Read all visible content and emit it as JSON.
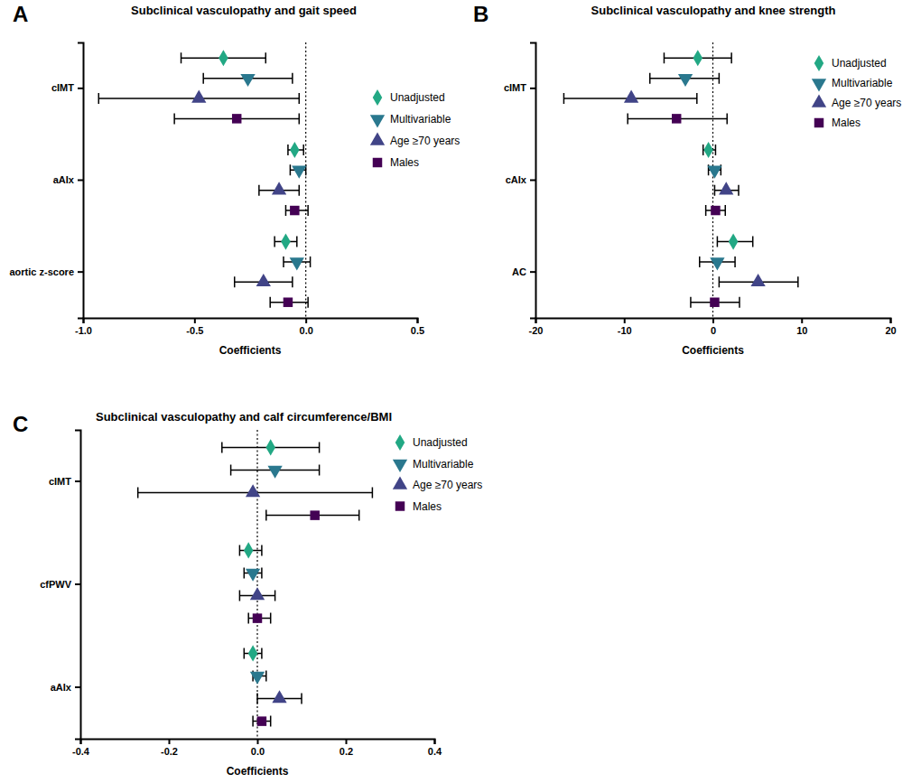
{
  "chart_data": [
    {
      "type": "forest",
      "panel": "A",
      "title": "Subclinical vasculopathy and gait speed",
      "x_label": "Coefficients",
      "categories": [
        "cIMT",
        "aAIx",
        "aortic z-score"
      ],
      "series": [
        {
          "name": "Unadjusted",
          "color": "#22a884",
          "marker": "diamond",
          "values": [
            -0.37,
            -0.05,
            -0.09
          ],
          "ci_low": [
            -0.56,
            -0.08,
            -0.14
          ],
          "ci_high": [
            -0.18,
            -0.01,
            -0.04
          ]
        },
        {
          "name": "Multivariable",
          "color": "#2a788e",
          "marker": "triangle-down",
          "values": [
            -0.26,
            -0.03,
            -0.04
          ],
          "ci_low": [
            -0.46,
            -0.07,
            -0.1
          ],
          "ci_high": [
            -0.06,
            0,
            0.02
          ]
        },
        {
          "name": "Age ≥70 years",
          "color": "#414487",
          "marker": "triangle-up",
          "values": [
            -0.48,
            -0.12,
            -0.19
          ],
          "ci_low": [
            -0.93,
            -0.21,
            -0.32
          ],
          "ci_high": [
            -0.03,
            -0.03,
            -0.06
          ]
        },
        {
          "name": "Males",
          "color": "#440154",
          "marker": "square",
          "values": [
            -0.31,
            -0.05,
            -0.08
          ],
          "ci_low": [
            -0.59,
            -0.09,
            -0.16
          ],
          "ci_high": [
            -0.03,
            0.01,
            0.01
          ]
        }
      ],
      "xlim": [
        -1,
        0.5
      ],
      "xticks": [
        {
          "value": -1,
          "label": "-1.0"
        },
        -0.5,
        {
          "value": 0,
          "label": "0.0"
        },
        0.5
      ],
      "reference_line": 0,
      "legend": "upper right"
    },
    {
      "type": "forest",
      "panel": "B",
      "title": "Subclinical vasculopathy and knee strength",
      "x_label": "Coefficients",
      "categories": [
        "cIMT",
        "cAIx",
        "AC"
      ],
      "series": [
        {
          "name": "Unadjusted",
          "color": "#22a884",
          "marker": "diamond",
          "values": [
            -1.7,
            -0.5,
            2.3
          ],
          "ci_low": [
            -5.5,
            -1.1,
            0.5
          ],
          "ci_high": [
            2.1,
            0.3,
            4.5
          ]
        },
        {
          "name": "Multivariable",
          "color": "#2a788e",
          "marker": "triangle-down",
          "values": [
            -3.1,
            0.2,
            0.5
          ],
          "ci_low": [
            -7.1,
            -0.5,
            -1.5
          ],
          "ci_high": [
            0.7,
            0.9,
            2.5
          ]
        },
        {
          "name": "Age ≥70 years",
          "color": "#414487",
          "marker": "triangle-up",
          "values": [
            -9.2,
            1.5,
            5.1
          ],
          "ci_low": [
            -16.8,
            0.2,
            0.7
          ],
          "ci_high": [
            -1.8,
            2.9,
            9.6
          ]
        },
        {
          "name": "Males",
          "color": "#440154",
          "marker": "square",
          "values": [
            -4.1,
            0.3,
            0.2
          ],
          "ci_low": [
            -9.6,
            -0.8,
            -2.5
          ],
          "ci_high": [
            1.6,
            1.4,
            3.0
          ]
        }
      ],
      "xlim": [
        -20,
        20
      ],
      "xticks": [
        -20,
        -10,
        0,
        10,
        20
      ],
      "reference_line": 0,
      "legend": "upper right"
    },
    {
      "type": "forest",
      "panel": "C",
      "title": "Subclinical vasculopathy and calf circumference/BMI",
      "x_label": "Coefficients",
      "categories": [
        "cIMT",
        "cfPWV",
        "aAIx"
      ],
      "series": [
        {
          "name": "Unadjusted",
          "color": "#22a884",
          "marker": "diamond",
          "values": [
            0.03,
            -0.02,
            -0.01
          ],
          "ci_low": [
            -0.08,
            -0.04,
            -0.03
          ],
          "ci_high": [
            0.14,
            0.01,
            0.01
          ]
        },
        {
          "name": "Multivariable",
          "color": "#2a788e",
          "marker": "triangle-down",
          "values": [
            0.04,
            -0.01,
            0
          ],
          "ci_low": [
            -0.06,
            -0.03,
            -0.01
          ],
          "ci_high": [
            0.14,
            0.01,
            0.02
          ]
        },
        {
          "name": "Age ≥70 years",
          "color": "#414487",
          "marker": "triangle-up",
          "values": [
            -0.01,
            0,
            0.05
          ],
          "ci_low": [
            -0.27,
            -0.04,
            0
          ],
          "ci_high": [
            0.26,
            0.04,
            0.1
          ]
        },
        {
          "name": "Males",
          "color": "#440154",
          "marker": "square",
          "values": [
            0.13,
            0,
            0.01
          ],
          "ci_low": [
            0.02,
            -0.02,
            -0.01
          ],
          "ci_high": [
            0.23,
            0.03,
            0.03
          ]
        }
      ],
      "xlim": [
        -0.4,
        0.4
      ],
      "xticks": [
        -0.4,
        -0.2,
        {
          "value": 0,
          "label": "0.0"
        },
        0.2,
        0.4
      ],
      "reference_line": 0,
      "legend": "upper right"
    }
  ]
}
